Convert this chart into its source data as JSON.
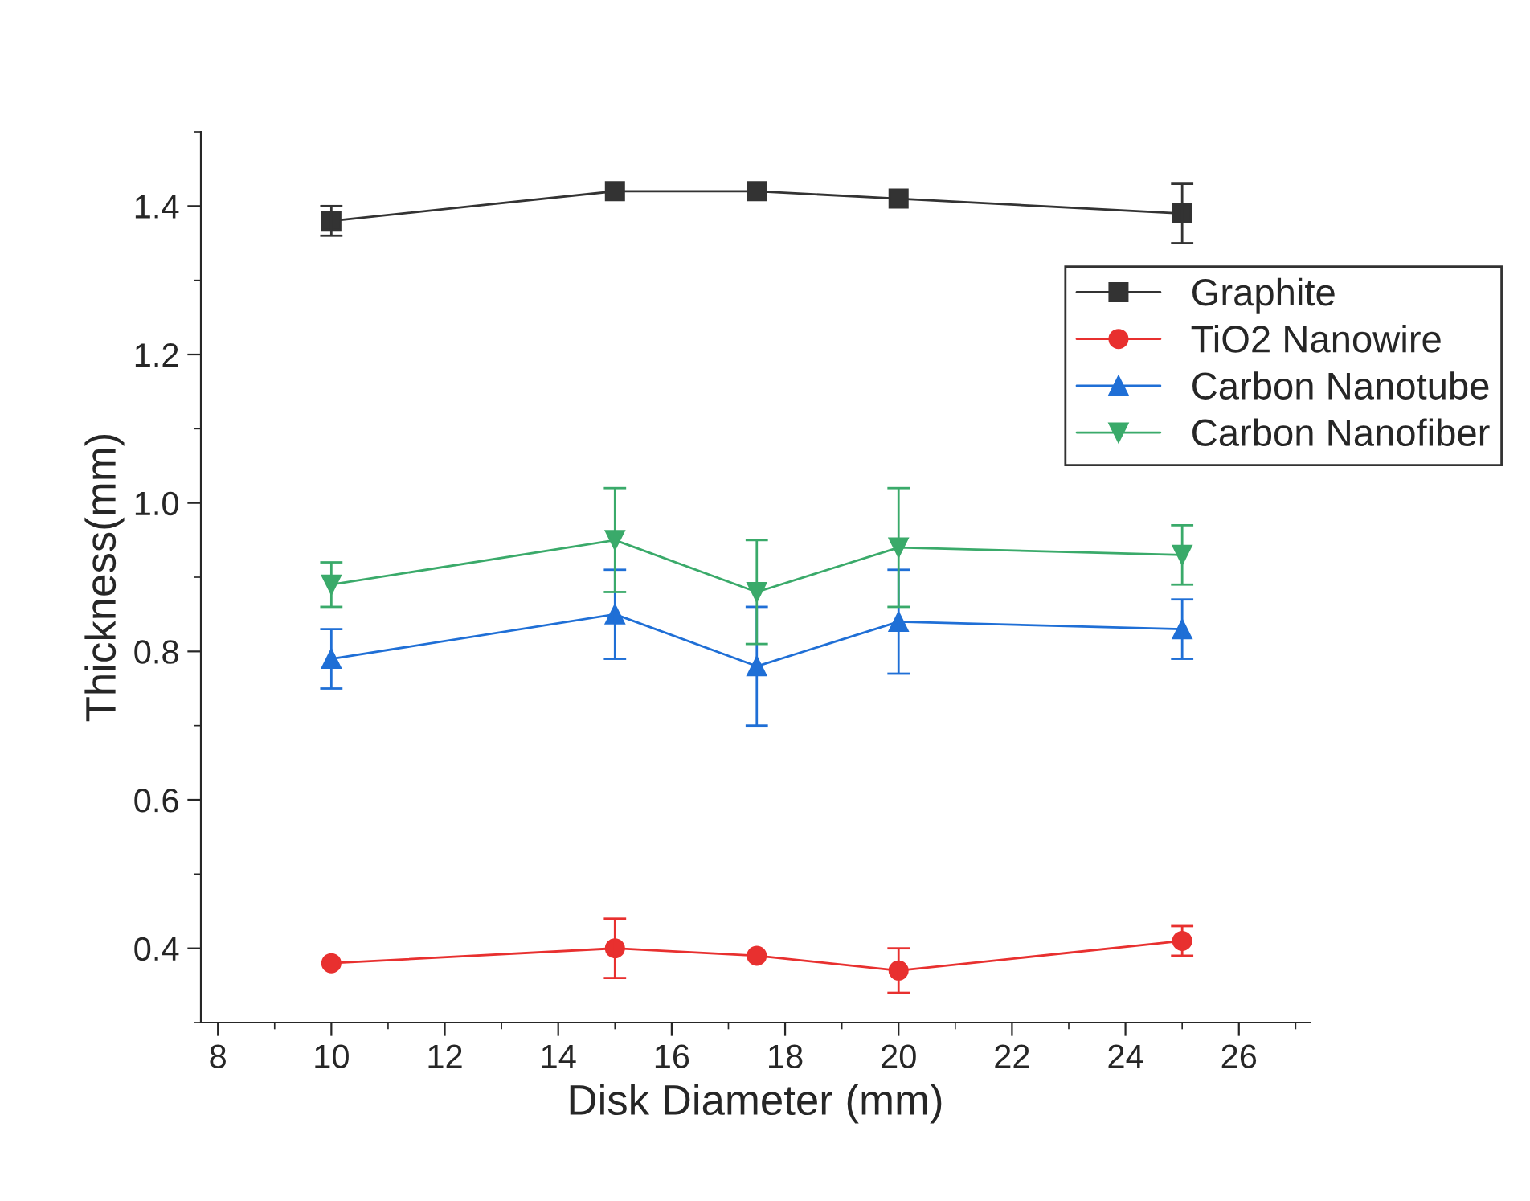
{
  "chart_data": {
    "type": "line",
    "xlabel": "Disk Diameter (mm)",
    "ylabel": "Thickness(mm)",
    "x": [
      10,
      15,
      17.5,
      20,
      25
    ],
    "series": [
      {
        "name": "Graphite",
        "color": "#333333",
        "marker": "square",
        "values": [
          1.38,
          1.42,
          1.42,
          1.41,
          1.39
        ],
        "errors": [
          0.02,
          null,
          null,
          null,
          0.04
        ]
      },
      {
        "name": "TiO2 Nanowire",
        "color": "#e8302f",
        "marker": "circle",
        "values": [
          0.38,
          0.4,
          0.39,
          0.37,
          0.41
        ],
        "errors": [
          null,
          0.04,
          null,
          0.03,
          0.02
        ]
      },
      {
        "name": "Carbon Nanotube",
        "color": "#1f6fd6",
        "marker": "triangle",
        "values": [
          0.79,
          0.85,
          0.78,
          0.84,
          0.83
        ],
        "errors": [
          0.04,
          0.06,
          0.08,
          0.07,
          0.04
        ]
      },
      {
        "name": "Carbon Nanofiber",
        "color": "#3aaa6a",
        "marker": "triangle_down",
        "values": [
          0.89,
          0.95,
          0.88,
          0.94,
          0.93
        ],
        "errors": [
          0.03,
          0.07,
          0.07,
          0.08,
          0.04
        ]
      }
    ],
    "xlim": [
      7.7,
      27.25
    ],
    "xticks": [
      8,
      10,
      12,
      14,
      16,
      18,
      20,
      22,
      24,
      26
    ],
    "ylim": [
      0.3,
      1.5
    ],
    "yticks": [
      0.4,
      0.6,
      0.8,
      {
        "value": 1,
        "label": "1.0"
      },
      1.2,
      1.4
    ],
    "legend": "top right",
    "grid": false,
    "line_style": "solid"
  }
}
